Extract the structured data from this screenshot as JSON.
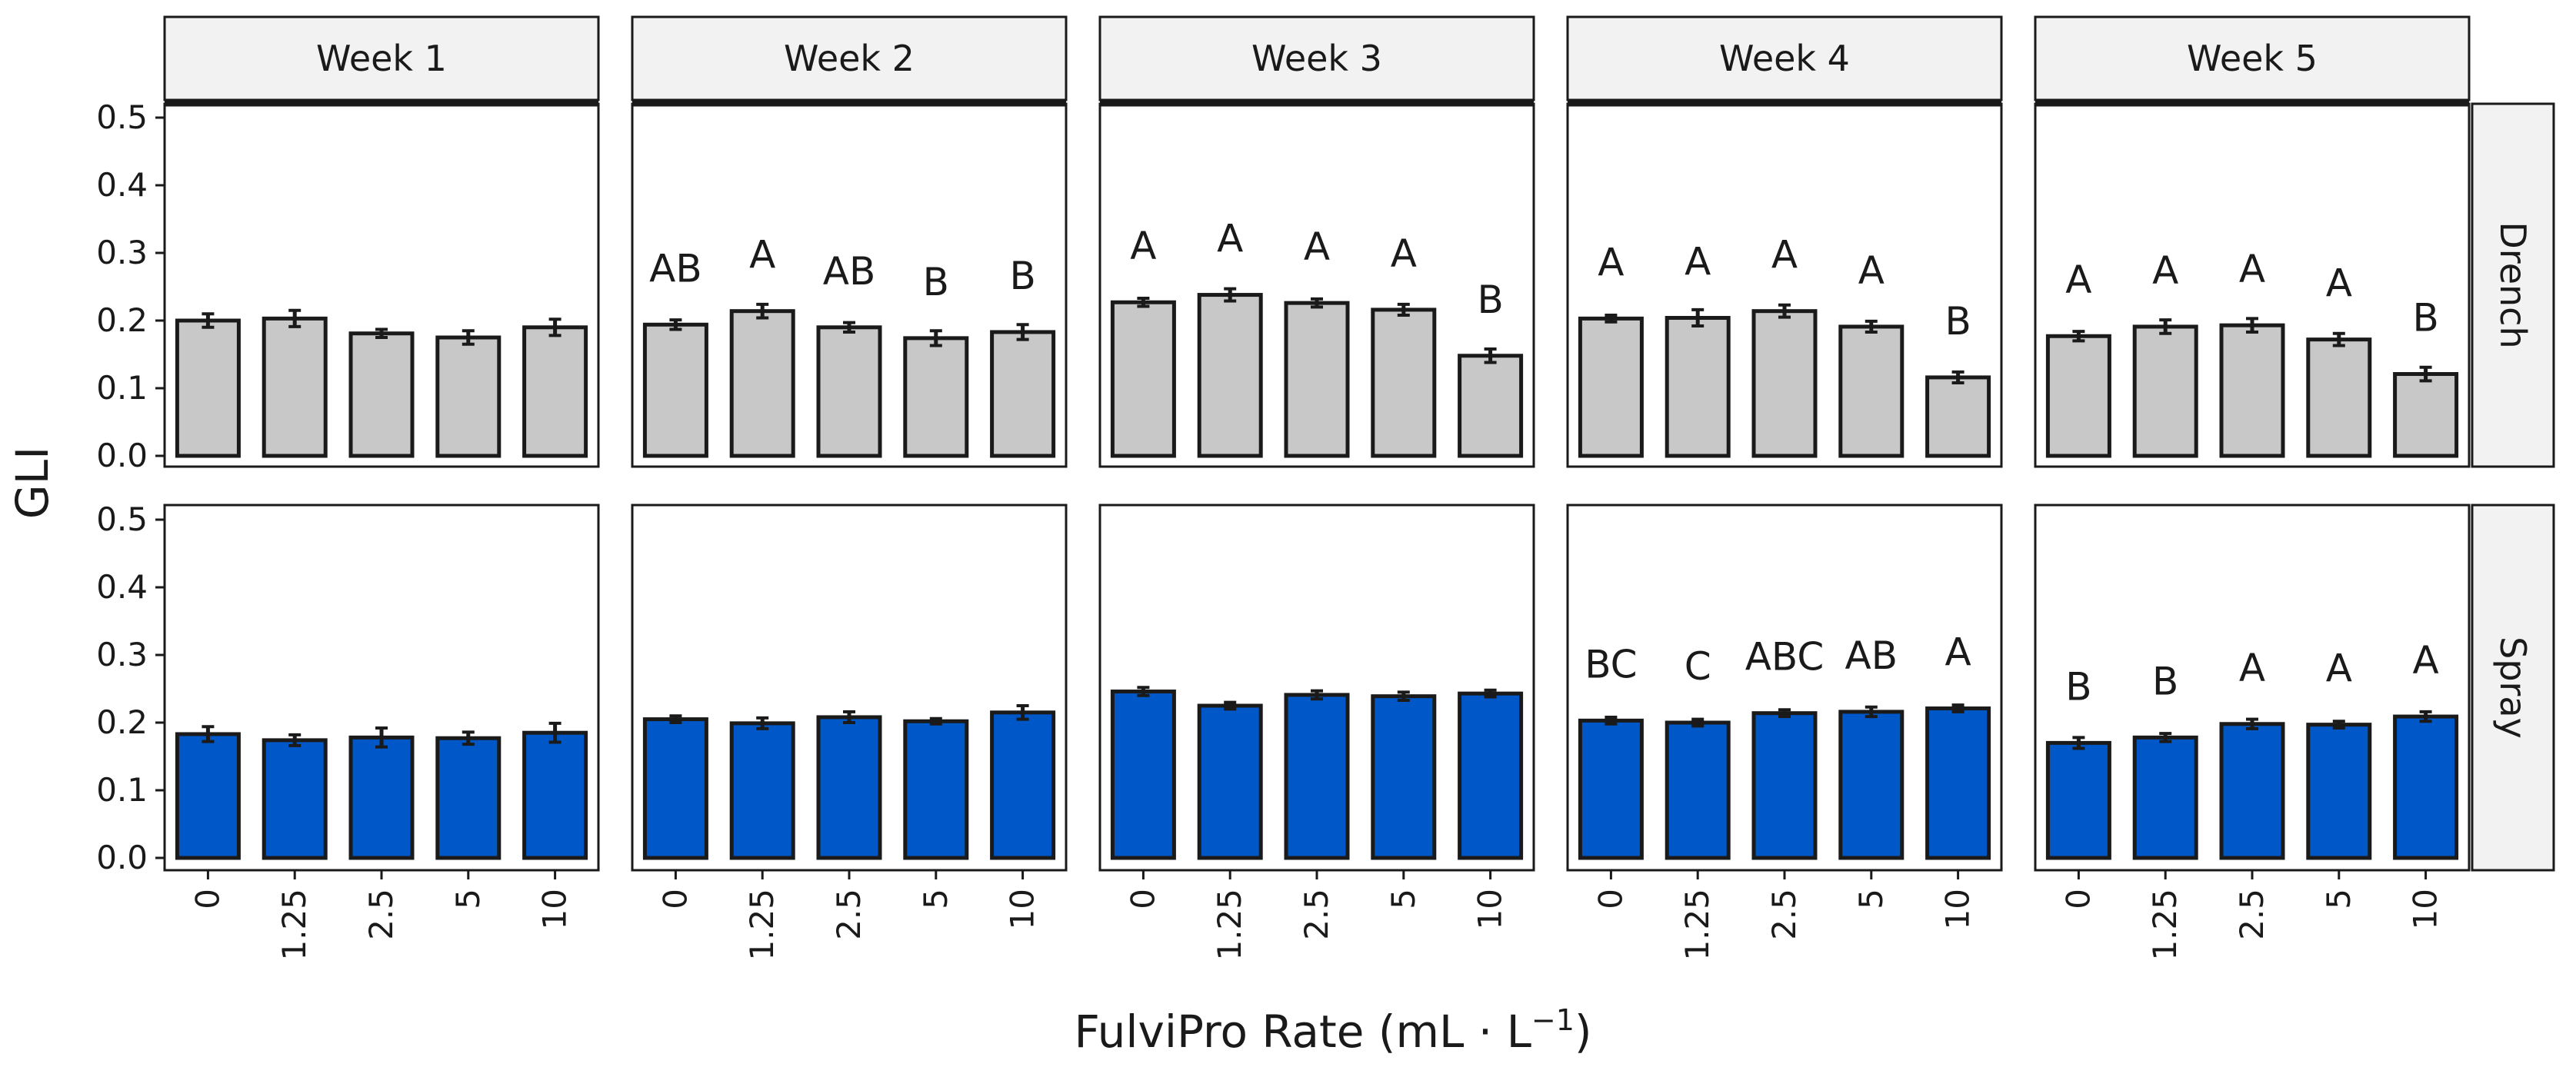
{
  "chart_data": {
    "type": "bar",
    "facet_columns": [
      "Week 1",
      "Week 2",
      "Week 3",
      "Week 4",
      "Week 5"
    ],
    "facet_rows": [
      "Drench",
      "Spray"
    ],
    "categories": [
      "0",
      "1.25",
      "2.5",
      "5",
      "10"
    ],
    "xlabel_main": "FulviPro Rate (mL · L",
    "xlabel_sup": "−1",
    "xlabel_end": ")",
    "ylabel": "GLI",
    "ylim": [
      0,
      0.52
    ],
    "y_ticks": [
      "0.0",
      "0.1",
      "0.2",
      "0.3",
      "0.4",
      "0.5"
    ],
    "colors": {
      "Drench": "#c8c8c8",
      "Spray": "#0058c8",
      "border": "#1a1a1a",
      "strip_bg": "#f2f2f2"
    },
    "panels": [
      {
        "row": "Drench",
        "week": "Week 1",
        "values": [
          0.2,
          0.203,
          0.181,
          0.175,
          0.19
        ],
        "errors": [
          0.01,
          0.012,
          0.006,
          0.01,
          0.012
        ],
        "letters": [
          "",
          "",
          "",
          "",
          ""
        ]
      },
      {
        "row": "Drench",
        "week": "Week 2",
        "values": [
          0.194,
          0.214,
          0.19,
          0.174,
          0.183
        ],
        "errors": [
          0.007,
          0.01,
          0.007,
          0.011,
          0.011
        ],
        "letters": [
          "AB",
          "A",
          "AB",
          "B",
          "B"
        ]
      },
      {
        "row": "Drench",
        "week": "Week 3",
        "values": [
          0.227,
          0.238,
          0.226,
          0.216,
          0.148
        ],
        "errors": [
          0.006,
          0.009,
          0.006,
          0.008,
          0.01
        ],
        "letters": [
          "A",
          "A",
          "A",
          "A",
          "B"
        ]
      },
      {
        "row": "Drench",
        "week": "Week 4",
        "values": [
          0.203,
          0.204,
          0.214,
          0.191,
          0.116
        ],
        "errors": [
          0.005,
          0.012,
          0.009,
          0.008,
          0.008
        ],
        "letters": [
          "A",
          "A",
          "A",
          "A",
          "B"
        ]
      },
      {
        "row": "Drench",
        "week": "Week 5",
        "values": [
          0.177,
          0.191,
          0.193,
          0.172,
          0.121
        ],
        "errors": [
          0.007,
          0.01,
          0.01,
          0.009,
          0.01
        ],
        "letters": [
          "A",
          "A",
          "A",
          "A",
          "B"
        ]
      },
      {
        "row": "Spray",
        "week": "Week 1",
        "values": [
          0.183,
          0.174,
          0.178,
          0.177,
          0.185
        ],
        "errors": [
          0.011,
          0.008,
          0.014,
          0.009,
          0.014
        ],
        "letters": [
          "",
          "",
          "",
          "",
          ""
        ]
      },
      {
        "row": "Spray",
        "week": "Week 2",
        "values": [
          0.205,
          0.199,
          0.208,
          0.202,
          0.215
        ],
        "errors": [
          0.005,
          0.008,
          0.008,
          0.004,
          0.01
        ],
        "letters": [
          "",
          "",
          "",
          "",
          ""
        ]
      },
      {
        "row": "Spray",
        "week": "Week 3",
        "values": [
          0.246,
          0.225,
          0.241,
          0.239,
          0.243
        ],
        "errors": [
          0.006,
          0.005,
          0.006,
          0.006,
          0.005
        ],
        "letters": [
          "",
          "",
          "",
          "",
          ""
        ]
      },
      {
        "row": "Spray",
        "week": "Week 4",
        "values": [
          0.203,
          0.2,
          0.214,
          0.216,
          0.221
        ],
        "errors": [
          0.005,
          0.005,
          0.005,
          0.007,
          0.005
        ],
        "letters": [
          "BC",
          "C",
          "ABC",
          "AB",
          "A"
        ]
      },
      {
        "row": "Spray",
        "week": "Week 5",
        "values": [
          0.17,
          0.178,
          0.198,
          0.197,
          0.209
        ],
        "errors": [
          0.008,
          0.006,
          0.007,
          0.005,
          0.007
        ],
        "letters": [
          "B",
          "B",
          "A",
          "A",
          "A"
        ]
      }
    ]
  }
}
